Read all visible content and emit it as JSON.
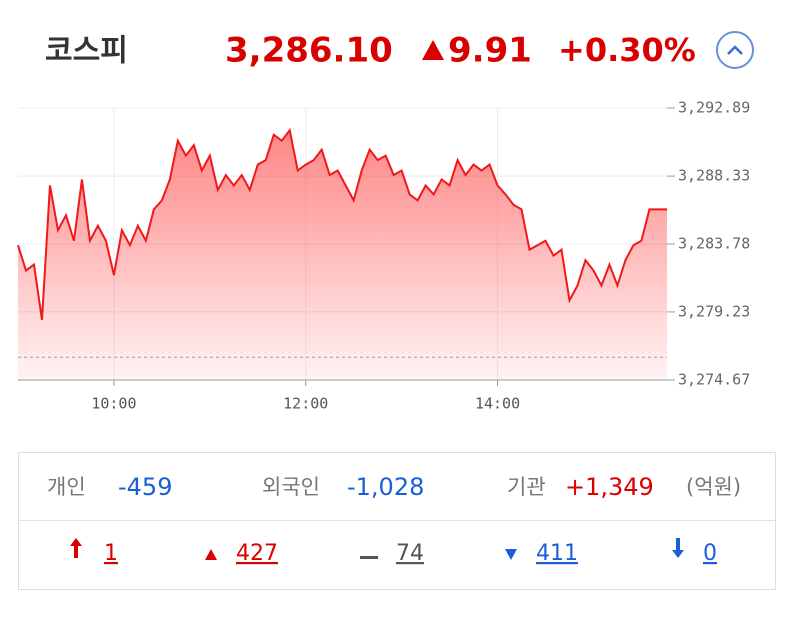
{
  "header": {
    "name": "코스피",
    "price": "3,286.10",
    "change": "9.91",
    "change_rate": "+0.30%"
  },
  "chart_data": {
    "type": "line",
    "color": "#f01818",
    "x": [
      540,
      545,
      550,
      555,
      560,
      565,
      570,
      575,
      580,
      585,
      590,
      595,
      600,
      605,
      610,
      615,
      620,
      625,
      630,
      635,
      640,
      645,
      650,
      655,
      660,
      665,
      670,
      675,
      680,
      685,
      690,
      695,
      700,
      705,
      710,
      715,
      720,
      725,
      730,
      735,
      740,
      745,
      750,
      755,
      760,
      765,
      770,
      775,
      780,
      785,
      790,
      795,
      800,
      805,
      810,
      815,
      820,
      825,
      830,
      835,
      840,
      845,
      850,
      855,
      860,
      865,
      870,
      875,
      880,
      885,
      890,
      895,
      900,
      905,
      910,
      915,
      920,
      925,
      930,
      935,
      946
    ],
    "values": [
      3283.7,
      3282.0,
      3282.4,
      3278.7,
      3287.7,
      3284.7,
      3285.7,
      3284.0,
      3288.1,
      3284.0,
      3285.0,
      3284.0,
      3281.7,
      3284.7,
      3283.7,
      3285.0,
      3284.0,
      3286.1,
      3286.7,
      3288.1,
      3290.7,
      3289.7,
      3290.4,
      3288.7,
      3289.7,
      3287.4,
      3288.4,
      3287.7,
      3288.4,
      3287.4,
      3289.1,
      3289.4,
      3291.1,
      3290.7,
      3291.4,
      3288.7,
      3289.1,
      3289.4,
      3290.1,
      3288.4,
      3288.7,
      3287.7,
      3286.7,
      3288.7,
      3290.1,
      3289.4,
      3289.7,
      3288.4,
      3288.7,
      3287.1,
      3286.7,
      3287.7,
      3287.1,
      3288.1,
      3287.7,
      3289.4,
      3288.4,
      3289.1,
      3288.7,
      3289.1,
      3287.7,
      3287.1,
      3286.4,
      3286.1,
      3283.4,
      3283.7,
      3284.0,
      3283.0,
      3283.4,
      3280.0,
      3281.0,
      3282.7,
      3282.0,
      3281.0,
      3282.4,
      3281.0,
      3282.7,
      3283.7,
      3284.0,
      3286.1,
      3286.1
    ],
    "reference_line": 3276.19,
    "xlim": [
      540,
      946
    ],
    "xticks": [
      {
        "value": 600,
        "label": "10:00"
      },
      {
        "value": 720,
        "label": "12:00"
      },
      {
        "value": 840,
        "label": "14:00"
      }
    ],
    "ylim": [
      3274.67,
      3292.89
    ],
    "yticks": [
      {
        "value": 3274.67,
        "label": "3,274.67"
      },
      {
        "value": 3279.23,
        "label": "3,279.23"
      },
      {
        "value": 3283.78,
        "label": "3,283.78"
      },
      {
        "value": 3288.33,
        "label": "3,288.33"
      },
      {
        "value": 3292.89,
        "label": "3,292.89"
      }
    ],
    "grid": true
  },
  "investors": [
    {
      "label": "개인",
      "value": "-459"
    },
    {
      "label": "외국인",
      "value": "-1,028"
    },
    {
      "label": "기관",
      "value": "+1,349"
    }
  ],
  "unit": "(억원)",
  "breadth": [
    "1",
    "427",
    "74",
    "411",
    "0"
  ]
}
